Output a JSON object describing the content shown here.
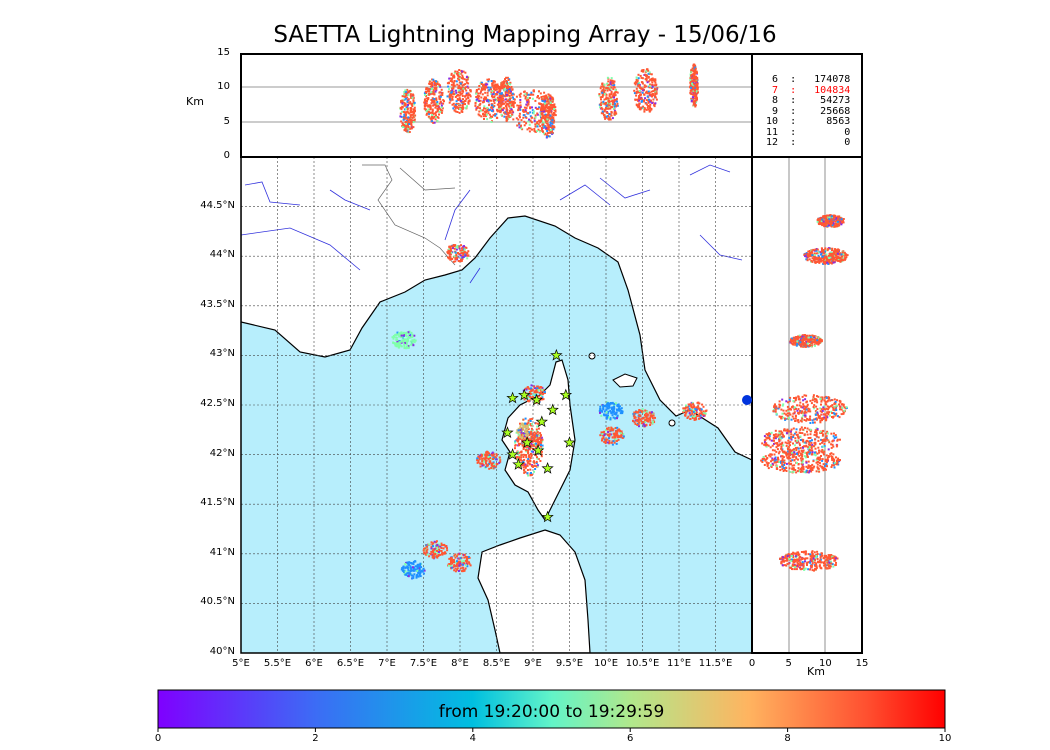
{
  "title": "SAETTA Lightning Mapping Array - 15/06/16",
  "altitude_panel": {
    "unit_label": "Km",
    "ticks": [
      "0",
      "5",
      "10",
      "15"
    ]
  },
  "side_panel": {
    "unit_label": "Km",
    "ticks": [
      "0",
      "5",
      "10",
      "15"
    ]
  },
  "station_counts": [
    {
      "stations": "6",
      "count": "174078",
      "color": "#000000"
    },
    {
      "stations": "7",
      "count": "104834",
      "color": "#ff0000"
    },
    {
      "stations": "8",
      "count": "54273",
      "color": "#000000"
    },
    {
      "stations": "9",
      "count": "25668",
      "color": "#000000"
    },
    {
      "stations": "10",
      "count": "8563",
      "color": "#000000"
    },
    {
      "stations": "11",
      "count": "0",
      "color": "#000000"
    },
    {
      "stations": "12",
      "count": "0",
      "color": "#000000"
    }
  ],
  "map": {
    "lon_ticks": [
      "5°E",
      "5.5°E",
      "6°E",
      "6.5°E",
      "7°E",
      "7.5°E",
      "8°E",
      "8.5°E",
      "9°E",
      "9.5°E",
      "10°E",
      "10.5°E",
      "11°E",
      "11.5°E"
    ],
    "lat_ticks": [
      "40°N",
      "40.5°N",
      "41°N",
      "41.5°N",
      "42°N",
      "42.5°N",
      "43°N",
      "43.5°N",
      "44°N",
      "44.5°N"
    ],
    "lon_range": [
      5,
      12
    ],
    "lat_range": [
      40,
      45
    ],
    "sea_color": "#b7eefc",
    "land_color": "#ffffff",
    "grid": true,
    "stations": [
      {
        "lon": 9.32,
        "lat": 43.0
      },
      {
        "lon": 8.72,
        "lat": 42.57
      },
      {
        "lon": 8.88,
        "lat": 42.6
      },
      {
        "lon": 9.05,
        "lat": 42.55
      },
      {
        "lon": 9.45,
        "lat": 42.6
      },
      {
        "lon": 9.27,
        "lat": 42.45
      },
      {
        "lon": 9.12,
        "lat": 42.33
      },
      {
        "lon": 8.65,
        "lat": 42.22
      },
      {
        "lon": 8.92,
        "lat": 42.12
      },
      {
        "lon": 9.5,
        "lat": 42.12
      },
      {
        "lon": 8.72,
        "lat": 42.0
      },
      {
        "lon": 9.07,
        "lat": 42.04
      },
      {
        "lon": 8.8,
        "lat": 41.9
      },
      {
        "lon": 9.2,
        "lat": 41.86
      },
      {
        "lon": 9.2,
        "lat": 41.37
      }
    ]
  },
  "colorbar": {
    "label": "from 19:20:00 to 19:29:59",
    "ticks": [
      "0",
      "2",
      "4",
      "6",
      "8",
      "10"
    ],
    "range": [
      0,
      10
    ]
  },
  "clusters": [
    {
      "lon": 10.5,
      "lat": 42.38,
      "color": "#ff5733"
    },
    {
      "lon": 10.05,
      "lat": 42.45,
      "color": "#1e90ff"
    },
    {
      "lon": 10.07,
      "lat": 42.2,
      "color": "#ff5733"
    },
    {
      "lon": 8.95,
      "lat": 42.15,
      "color": "#ff5733"
    },
    {
      "lon": 9.0,
      "lat": 42.62,
      "color": "#ff5733"
    },
    {
      "lon": 8.38,
      "lat": 41.95,
      "color": "#ff5733"
    },
    {
      "lon": 7.95,
      "lat": 44.04,
      "color": "#ff5733"
    },
    {
      "lon": 7.65,
      "lat": 41.05,
      "color": "#ff5733"
    },
    {
      "lon": 7.35,
      "lat": 40.85,
      "color": "#1e90ff"
    },
    {
      "lon": 7.98,
      "lat": 40.92,
      "color": "#ff5733"
    },
    {
      "lon": 7.22,
      "lat": 43.17,
      "color": "#7fffaa"
    },
    {
      "lon": 11.2,
      "lat": 42.45,
      "color": "#ff5733"
    }
  ]
}
